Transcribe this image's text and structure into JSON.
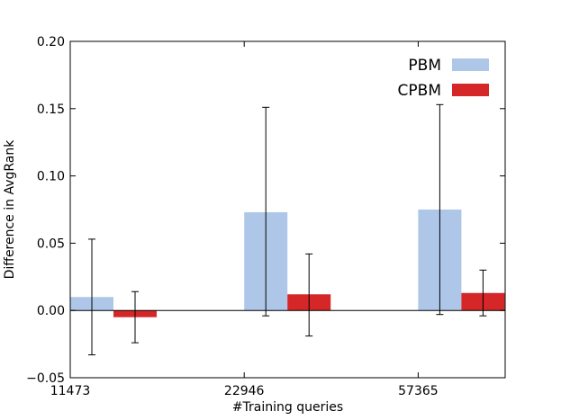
{
  "chart_data": {
    "type": "bar",
    "title": "",
    "xlabel": "#Training queries",
    "ylabel": "Difference in AvgRank",
    "categories": [
      "11473",
      "22946",
      "57365"
    ],
    "ylim": [
      -0.05,
      0.2
    ],
    "yticks": [
      -0.05,
      0.0,
      0.05,
      0.1,
      0.15,
      0.2
    ],
    "ytick_labels": [
      "−0.05",
      "0.00",
      "0.05",
      "0.10",
      "0.15",
      "0.20"
    ],
    "grid": false,
    "zero_line": true,
    "legend_position": "top-right",
    "series": [
      {
        "name": "PBM",
        "color": "#aec7e8",
        "values": [
          0.01,
          0.073,
          0.075
        ],
        "error_low": [
          -0.033,
          -0.004,
          -0.003
        ],
        "error_high": [
          0.053,
          0.151,
          0.153
        ]
      },
      {
        "name": "CPBM",
        "color": "#d62728",
        "values": [
          -0.005,
          0.012,
          0.013
        ],
        "error_low": [
          -0.024,
          -0.019,
          -0.004
        ],
        "error_high": [
          0.014,
          0.042,
          0.03
        ]
      }
    ]
  }
}
